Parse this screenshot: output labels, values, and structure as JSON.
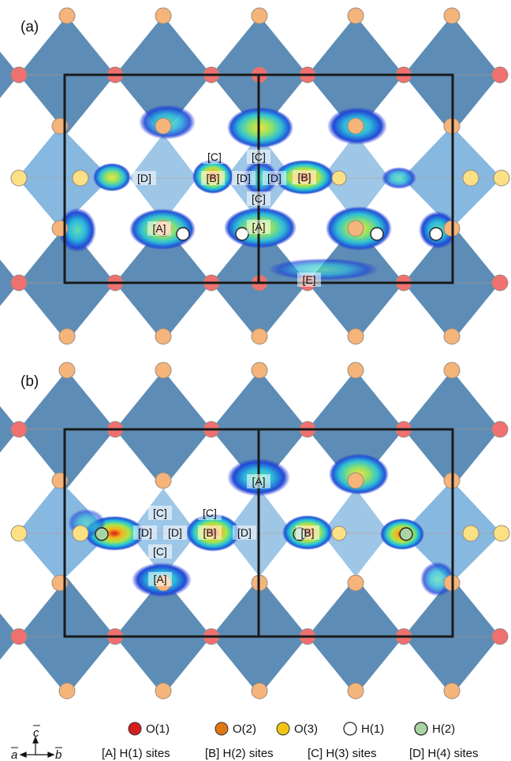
{
  "panels": [
    {
      "tag": "(a)",
      "site_labels": [
        "[C]",
        "[C]",
        "[D]",
        "[B]",
        "[D]",
        "[D]",
        "[B]",
        "[C]",
        "[A]",
        "[A]",
        "[E]"
      ]
    },
    {
      "tag": "(b)",
      "site_labels": [
        "[A]",
        "[C]",
        "[C]",
        "[D]",
        "[D]",
        "[B]",
        "[D]",
        "[B]",
        "[C]",
        "[A]"
      ]
    }
  ],
  "legend": {
    "atoms": [
      {
        "label": "O(1)",
        "color": "#d61e1e"
      },
      {
        "label": "O(2)",
        "color": "#e07812"
      },
      {
        "label": "O(3)",
        "color": "#f2c515"
      },
      {
        "label": "H(1)",
        "color": "#ffffff"
      },
      {
        "label": "H(2)",
        "color": "#a9d4a4"
      }
    ],
    "sites": [
      "[A] H(1) sites",
      "[B] H(2) sites",
      "[C] H(3) sites",
      "[D] H(4) sites"
    ]
  },
  "axes": {
    "c_label": "c",
    "a_label": "a",
    "b_label": "b"
  },
  "colors": {
    "octa_dark": "#5d8db6",
    "octa_light": "#86b8e0",
    "o1_atom": "#f07070",
    "o2_atom": "#f5b47a",
    "o3_atom": "#fbe184",
    "cell": "#1a1a1a"
  }
}
